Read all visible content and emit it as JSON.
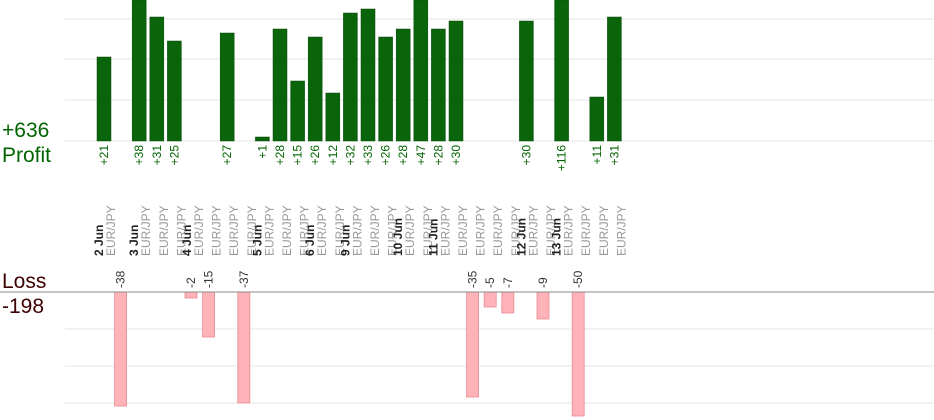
{
  "chart_data": {
    "type": "bar",
    "profit_label": "Profit",
    "profit_total": "+636",
    "loss_label": "Loss",
    "loss_total": "-198",
    "colors": {
      "profit": "#0a640a",
      "loss": "#ffb3b8",
      "axis": "#888888",
      "grid": "#e6e6e6",
      "date": "#222222",
      "pair": "#999999",
      "profit_text": "#006400",
      "loss_text": "#333333"
    },
    "trades": [
      {
        "value": 21,
        "label": "+21",
        "date": "2 Jun",
        "pair": "EUR/JPY"
      },
      {
        "value": -38,
        "label": "-38",
        "date": "",
        "pair": ""
      },
      {
        "value": 38,
        "label": "+38",
        "date": "3 Jun",
        "pair": "EUR/JPY"
      },
      {
        "value": 31,
        "label": "+31",
        "date": "",
        "pair": "EUR/JPY"
      },
      {
        "value": 25,
        "label": "+25",
        "date": "",
        "pair": "EUR/JPY"
      },
      {
        "value": -2,
        "label": "-2",
        "date": "4 Jun",
        "pair": "EUR/JPY"
      },
      {
        "value": -15,
        "label": "-15",
        "date": "",
        "pair": "EUR/JPY"
      },
      {
        "value": 27,
        "label": "+27",
        "date": "",
        "pair": "EUR/JPY"
      },
      {
        "value": -37,
        "label": "-37",
        "date": "",
        "pair": "EUR/JPY"
      },
      {
        "value": 1,
        "label": "+1",
        "date": "5 Jun",
        "pair": "EUR/JPY"
      },
      {
        "value": 28,
        "label": "+28",
        "date": "",
        "pair": "EUR/JPY"
      },
      {
        "value": 15,
        "label": "+15",
        "date": "",
        "pair": "EUR/JPY"
      },
      {
        "value": 26,
        "label": "+26",
        "date": "6 Jun",
        "pair": "EUR/JPY"
      },
      {
        "value": 12,
        "label": "+12",
        "date": "",
        "pair": "EUR/JPY"
      },
      {
        "value": 32,
        "label": "+32",
        "date": "9 Jun",
        "pair": "EUR/JPY"
      },
      {
        "value": 33,
        "label": "+33",
        "date": "",
        "pair": "EUR/JPY"
      },
      {
        "value": 26,
        "label": "+26",
        "date": "",
        "pair": "EUR/JPY"
      },
      {
        "value": 28,
        "label": "+28",
        "date": "10 Jun",
        "pair": "EUR/JPY"
      },
      {
        "value": 47,
        "label": "+47",
        "date": "",
        "pair": "EUR/JPY"
      },
      {
        "value": 28,
        "label": "+28",
        "date": "11 Jun",
        "pair": "EUR/JPY"
      },
      {
        "value": 30,
        "label": "+30",
        "date": "",
        "pair": "EUR/JPY"
      },
      {
        "value": -35,
        "label": "-35",
        "date": "",
        "pair": "EUR/JPY"
      },
      {
        "value": -5,
        "label": "-5",
        "date": "",
        "pair": "EUR/JPY"
      },
      {
        "value": -7,
        "label": "-7",
        "date": "",
        "pair": "EUR/JPY"
      },
      {
        "value": 30,
        "label": "+30",
        "date": "12 Jun",
        "pair": "EUR/JPY"
      },
      {
        "value": -9,
        "label": "-9",
        "date": "",
        "pair": "EUR/JPY"
      },
      {
        "value": 116,
        "label": "+116",
        "date": "13 Jun",
        "pair": "EUR/JPY"
      },
      {
        "value": -50,
        "label": "-50",
        "date": "",
        "pair": "EUR/JPY"
      },
      {
        "value": 11,
        "label": "+11",
        "date": "",
        "pair": "EUR/JPY"
      },
      {
        "value": 31,
        "label": "+31",
        "date": "",
        "pair": "EUR/JPY"
      }
    ]
  }
}
